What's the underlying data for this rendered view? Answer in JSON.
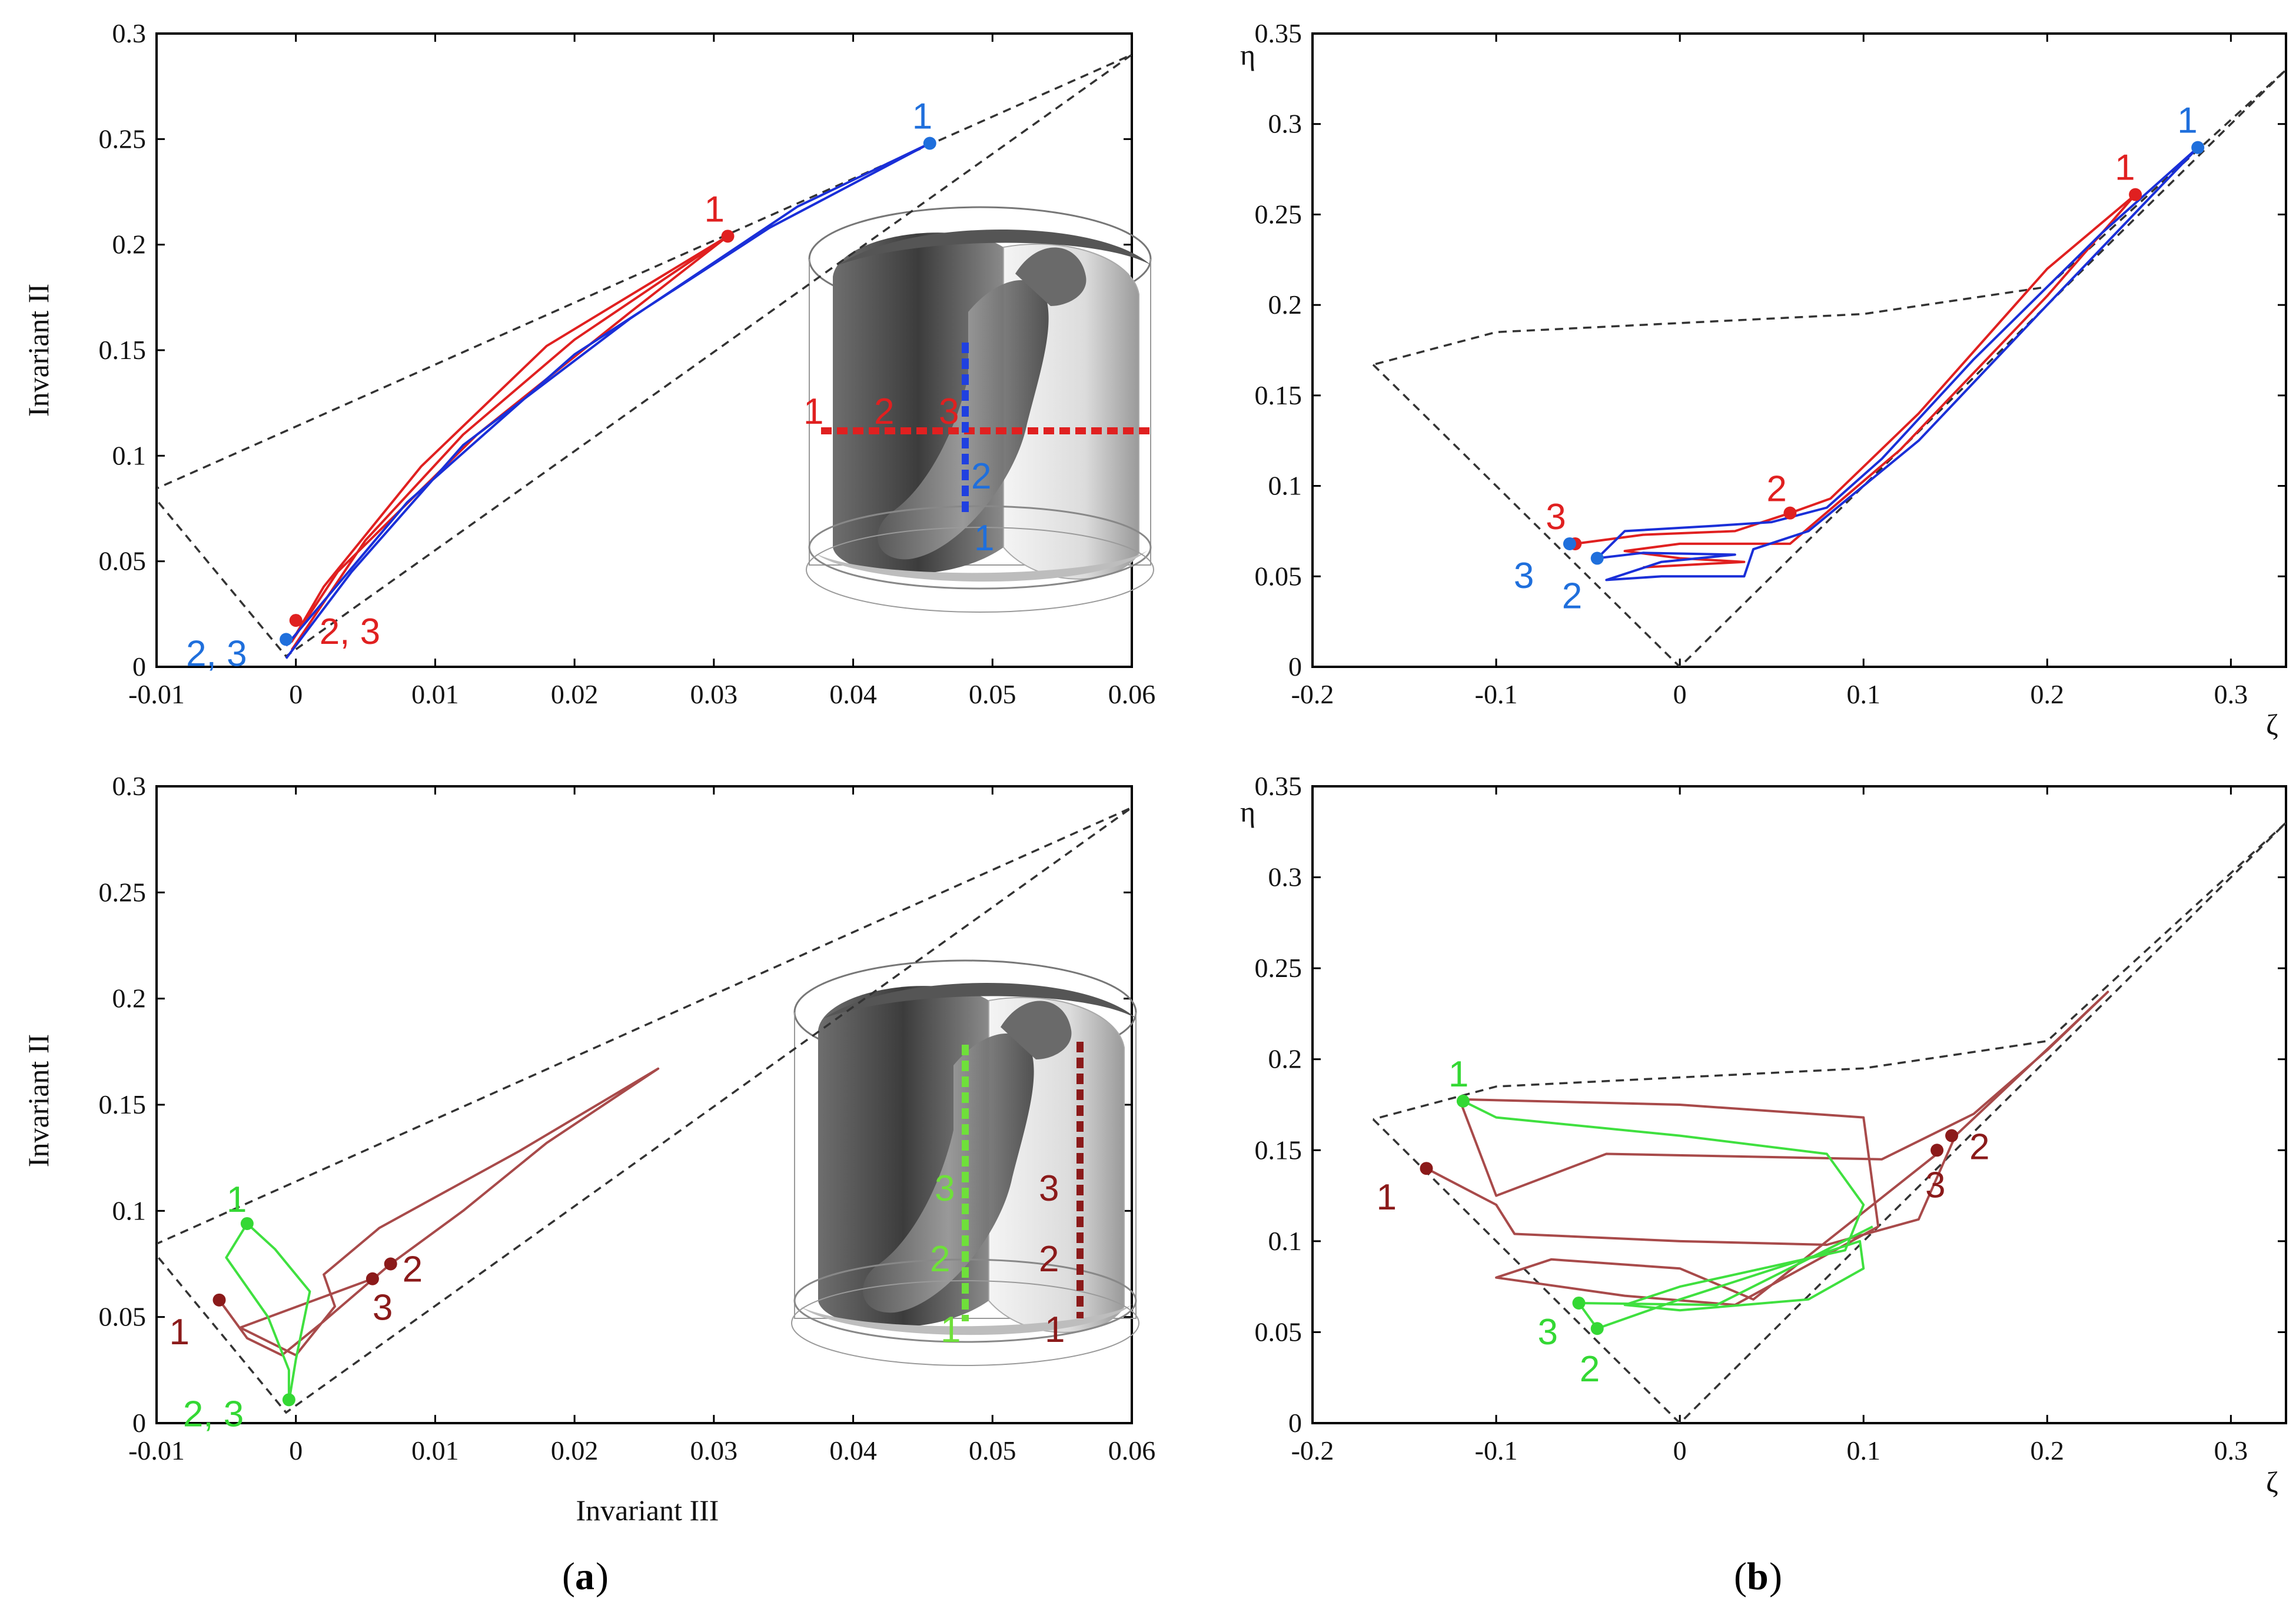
{
  "panel_labels": {
    "a": "a",
    "b": "b"
  },
  "colors": {
    "red": "#e02020",
    "blue": "#1a2fd8",
    "blue_label": "#1f6fdc",
    "green": "#3fe03f",
    "green_label": "#34d834",
    "darkred": "#8b1a1a",
    "brown_curve": "#a84a4a",
    "boundary": "#333333"
  },
  "chart_data": [
    {
      "id": "a-top",
      "type": "line",
      "title": "",
      "xlabel": "Invariant III",
      "ylabel": "Invariant II",
      "xlim": [
        -0.01,
        0.06
      ],
      "ylim": [
        0,
        0.3
      ],
      "xticks": [
        "-0.01",
        "0",
        "0.01",
        "0.02",
        "0.03",
        "0.04",
        "0.05",
        "0.06"
      ],
      "yticks": [
        "0",
        "0.05",
        "0.1",
        "0.15",
        "0.2",
        "0.25",
        "0.3"
      ],
      "boundary": [
        [
          -0.0105,
          0.083
        ],
        [
          -0.0007,
          0.005
        ],
        [
          0.06,
          0.29
        ],
        [
          -0.0105,
          0.083
        ]
      ],
      "series": [
        {
          "name": "red line (horizontal, points 1-2-3)",
          "color": "#e02020",
          "points": [
            [
              -0.0003,
              0.008
            ],
            [
              0.005,
              0.06
            ],
            [
              0.012,
              0.11
            ],
            [
              0.02,
              0.155
            ],
            [
              0.031,
              0.204
            ],
            [
              0.018,
              0.152
            ],
            [
              0.009,
              0.095
            ],
            [
              0.002,
              0.038
            ],
            [
              -0.0003,
              0.012
            ],
            [
              0.003,
              0.045
            ],
            [
              0.013,
              0.11
            ],
            [
              0.024,
              0.168
            ],
            [
              0.031,
              0.204
            ]
          ]
        },
        {
          "name": "blue line (vertical, points 1-2)",
          "color": "#1a2fd8",
          "points": [
            [
              -0.0007,
              0.004
            ],
            [
              0.004,
              0.045
            ],
            [
              0.012,
              0.105
            ],
            [
              0.024,
              0.165
            ],
            [
              0.036,
              0.218
            ],
            [
              0.0455,
              0.248
            ],
            [
              0.034,
              0.208
            ],
            [
              0.02,
              0.148
            ],
            [
              0.008,
              0.078
            ],
            [
              -0.0007,
              0.01
            ]
          ]
        }
      ],
      "markers": [
        {
          "label": "1",
          "x": 0.031,
          "y": 0.204,
          "color": "#e02020"
        },
        {
          "label": "2, 3",
          "x": 0.0,
          "y": 0.022,
          "color": "#e02020"
        },
        {
          "label": "1",
          "x": 0.0455,
          "y": 0.248,
          "color": "#1f6fdc"
        },
        {
          "label": "2, 3",
          "x": -0.0007,
          "y": 0.013,
          "color": "#1f6fdc"
        }
      ],
      "inset": {
        "row_labels": [
          "1",
          "2",
          "3"
        ],
        "col_labels": [
          "2",
          "1"
        ]
      }
    },
    {
      "id": "b-top",
      "type": "line",
      "title": "",
      "xlabel": "ζ",
      "ylabel": "η",
      "xlim": [
        -0.2,
        0.33
      ],
      "ylim": [
        0,
        0.35
      ],
      "xticks": [
        "-0.2",
        "-0.1",
        "0",
        "0.1",
        "0.2",
        "0.3"
      ],
      "yticks": [
        "0",
        "0.05",
        "0.1",
        "0.15",
        "0.2",
        "0.25",
        "0.3",
        "0.35"
      ],
      "boundary": [
        [
          -0.167,
          0.167
        ],
        [
          0,
          0
        ],
        [
          0.33,
          0.33
        ],
        [
          0.2,
          0.21
        ],
        [
          0.1,
          0.195
        ],
        [
          0.0,
          0.19
        ],
        [
          -0.1,
          0.185
        ],
        [
          -0.167,
          0.167
        ]
      ],
      "series": [
        {
          "name": "red line",
          "color": "#e02020",
          "points": [
            [
              -0.057,
              0.068
            ],
            [
              -0.02,
              0.073
            ],
            [
              0.03,
              0.075
            ],
            [
              0.06,
              0.085
            ],
            [
              0.082,
              0.093
            ],
            [
              0.13,
              0.14
            ],
            [
              0.2,
              0.22
            ],
            [
              0.248,
              0.261
            ],
            [
              0.2,
              0.205
            ],
            [
              0.12,
              0.12
            ],
            [
              0.06,
              0.068
            ],
            [
              0.0,
              0.068
            ],
            [
              -0.03,
              0.064
            ],
            [
              0.0,
              0.06
            ],
            [
              0.035,
              0.058
            ],
            [
              -0.02,
              0.055
            ]
          ]
        },
        {
          "name": "blue line",
          "color": "#1a2fd8",
          "points": [
            [
              -0.045,
              0.06
            ],
            [
              -0.03,
              0.075
            ],
            [
              0.02,
              0.078
            ],
            [
              0.05,
              0.08
            ],
            [
              0.08,
              0.088
            ],
            [
              0.11,
              0.115
            ],
            [
              0.16,
              0.17
            ],
            [
              0.23,
              0.24
            ],
            [
              0.282,
              0.287
            ],
            [
              0.2,
              0.2
            ],
            [
              0.13,
              0.125
            ],
            [
              0.07,
              0.075
            ],
            [
              0.04,
              0.065
            ],
            [
              0.035,
              0.05
            ],
            [
              -0.01,
              0.05
            ],
            [
              -0.04,
              0.048
            ],
            [
              -0.01,
              0.058
            ],
            [
              0.03,
              0.062
            ],
            [
              -0.02,
              0.063
            ],
            [
              -0.045,
              0.06
            ]
          ]
        }
      ],
      "markers": [
        {
          "label": "1",
          "x": 0.248,
          "y": 0.261,
          "color": "#e02020"
        },
        {
          "label": "2",
          "x": 0.06,
          "y": 0.085,
          "color": "#e02020"
        },
        {
          "label": "3",
          "x": -0.057,
          "y": 0.068,
          "color": "#e02020"
        },
        {
          "label": "1",
          "x": 0.282,
          "y": 0.287,
          "color": "#1f6fdc"
        },
        {
          "label": "3",
          "x": -0.06,
          "y": 0.068,
          "color": "#1f6fdc"
        },
        {
          "label": "2",
          "x": -0.045,
          "y": 0.06,
          "color": "#1f6fdc"
        }
      ]
    },
    {
      "id": "a-bottom",
      "type": "line",
      "title": "",
      "xlabel": "Invariant III",
      "ylabel": "Invariant II",
      "xlim": [
        -0.01,
        0.06
      ],
      "ylim": [
        0,
        0.3
      ],
      "xticks": [
        "-0.01",
        "0",
        "0.01",
        "0.02",
        "0.03",
        "0.04",
        "0.05",
        "0.06"
      ],
      "yticks": [
        "0",
        "0.05",
        "0.1",
        "0.15",
        "0.2",
        "0.25",
        "0.3"
      ],
      "boundary": [
        [
          -0.0105,
          0.083
        ],
        [
          -0.0007,
          0.005
        ],
        [
          0.06,
          0.29
        ],
        [
          -0.0105,
          0.083
        ]
      ],
      "series": [
        {
          "name": "dark red line (points 1-2-3)",
          "color": "#a84a4a",
          "points": [
            [
              -0.0055,
              0.058
            ],
            [
              -0.0035,
              0.04
            ],
            [
              -0.001,
              0.032
            ],
            [
              0.002,
              0.048
            ],
            [
              0.0068,
              0.075
            ],
            [
              0.012,
              0.1
            ],
            [
              0.018,
              0.132
            ],
            [
              0.026,
              0.167
            ],
            [
              0.016,
              0.128
            ],
            [
              0.006,
              0.092
            ],
            [
              0.002,
              0.07
            ],
            [
              0.0028,
              0.055
            ],
            [
              0.0,
              0.032
            ],
            [
              -0.004,
              0.045
            ],
            [
              0.0055,
              0.068
            ]
          ]
        },
        {
          "name": "green line (points 1-2-3)",
          "color": "#3fe03f",
          "points": [
            [
              -0.0035,
              0.094
            ],
            [
              -0.0015,
              0.082
            ],
            [
              0.001,
              0.062
            ],
            [
              0.0,
              0.03
            ],
            [
              -0.0005,
              0.01
            ],
            [
              -0.0005,
              0.025
            ],
            [
              -0.002,
              0.05
            ],
            [
              -0.005,
              0.078
            ],
            [
              -0.0035,
              0.094
            ]
          ]
        }
      ],
      "markers": [
        {
          "label": "1",
          "x": -0.0035,
          "y": 0.094,
          "color": "#34d834"
        },
        {
          "label": "2, 3",
          "x": -0.0005,
          "y": 0.011,
          "color": "#34d834"
        },
        {
          "label": "1",
          "x": -0.0055,
          "y": 0.058,
          "color": "#8b1a1a"
        },
        {
          "label": "2",
          "x": 0.0068,
          "y": 0.075,
          "color": "#8b1a1a"
        },
        {
          "label": "3",
          "x": 0.0055,
          "y": 0.068,
          "color": "#8b1a1a"
        }
      ],
      "inset": {
        "green_labels": [
          "3",
          "2",
          "1"
        ],
        "darkred_labels": [
          "3",
          "2",
          "1"
        ]
      }
    },
    {
      "id": "b-bottom",
      "type": "line",
      "title": "",
      "xlabel": "ζ",
      "ylabel": "η",
      "xlim": [
        -0.2,
        0.33
      ],
      "ylim": [
        0,
        0.35
      ],
      "xticks": [
        "-0.2",
        "-0.1",
        "0",
        "0.1",
        "0.2",
        "0.3"
      ],
      "yticks": [
        "0",
        "0.05",
        "0.1",
        "0.15",
        "0.2",
        "0.25",
        "0.3",
        "0.35"
      ],
      "boundary": [
        [
          -0.167,
          0.167
        ],
        [
          0,
          0
        ],
        [
          0.33,
          0.33
        ],
        [
          0.2,
          0.21
        ],
        [
          0.1,
          0.195
        ],
        [
          0.0,
          0.19
        ],
        [
          -0.1,
          0.185
        ],
        [
          -0.167,
          0.167
        ]
      ],
      "series": [
        {
          "name": "dark red line",
          "color": "#a84a4a",
          "points": [
            [
              -0.138,
              0.14
            ],
            [
              -0.1,
              0.12
            ],
            [
              -0.09,
              0.104
            ],
            [
              0.0,
              0.1
            ],
            [
              0.08,
              0.098
            ],
            [
              0.13,
              0.112
            ],
            [
              0.15,
              0.158
            ],
            [
              0.21,
              0.215
            ],
            [
              0.233,
              0.237
            ],
            [
              0.2,
              0.205
            ],
            [
              0.16,
              0.17
            ],
            [
              0.11,
              0.145
            ],
            [
              -0.04,
              0.148
            ],
            [
              -0.1,
              0.125
            ],
            [
              -0.12,
              0.178
            ],
            [
              0.0,
              0.175
            ],
            [
              0.1,
              0.168
            ],
            [
              0.108,
              0.108
            ],
            [
              0.03,
              0.065
            ],
            [
              -0.03,
              0.07
            ],
            [
              -0.1,
              0.08
            ],
            [
              -0.07,
              0.09
            ],
            [
              0.0,
              0.085
            ],
            [
              0.04,
              0.068
            ],
            [
              0.14,
              0.148
            ]
          ]
        },
        {
          "name": "green line",
          "color": "#3fe03f",
          "points": [
            [
              -0.118,
              0.177
            ],
            [
              -0.1,
              0.168
            ],
            [
              0.0,
              0.158
            ],
            [
              0.08,
              0.148
            ],
            [
              0.1,
              0.12
            ],
            [
              0.09,
              0.095
            ],
            [
              0.0,
              0.075
            ],
            [
              -0.03,
              0.065
            ],
            [
              0.0,
              0.062
            ],
            [
              0.07,
              0.068
            ],
            [
              0.1,
              0.085
            ],
            [
              0.098,
              0.1
            ],
            [
              0.0,
              0.068
            ],
            [
              -0.045,
              0.052
            ],
            [
              -0.055,
              0.066
            ],
            [
              0.02,
              0.065
            ],
            [
              0.105,
              0.108
            ]
          ]
        }
      ],
      "markers": [
        {
          "label": "1",
          "x": -0.118,
          "y": 0.177,
          "color": "#34d834"
        },
        {
          "label": "3",
          "x": -0.055,
          "y": 0.066,
          "color": "#34d834"
        },
        {
          "label": "2",
          "x": -0.045,
          "y": 0.052,
          "color": "#34d834"
        },
        {
          "label": "1",
          "x": -0.138,
          "y": 0.14,
          "color": "#8b1a1a"
        },
        {
          "label": "2",
          "x": 0.148,
          "y": 0.158,
          "color": "#8b1a1a"
        },
        {
          "label": "3",
          "x": 0.14,
          "y": 0.15,
          "color": "#8b1a1a"
        }
      ]
    }
  ]
}
